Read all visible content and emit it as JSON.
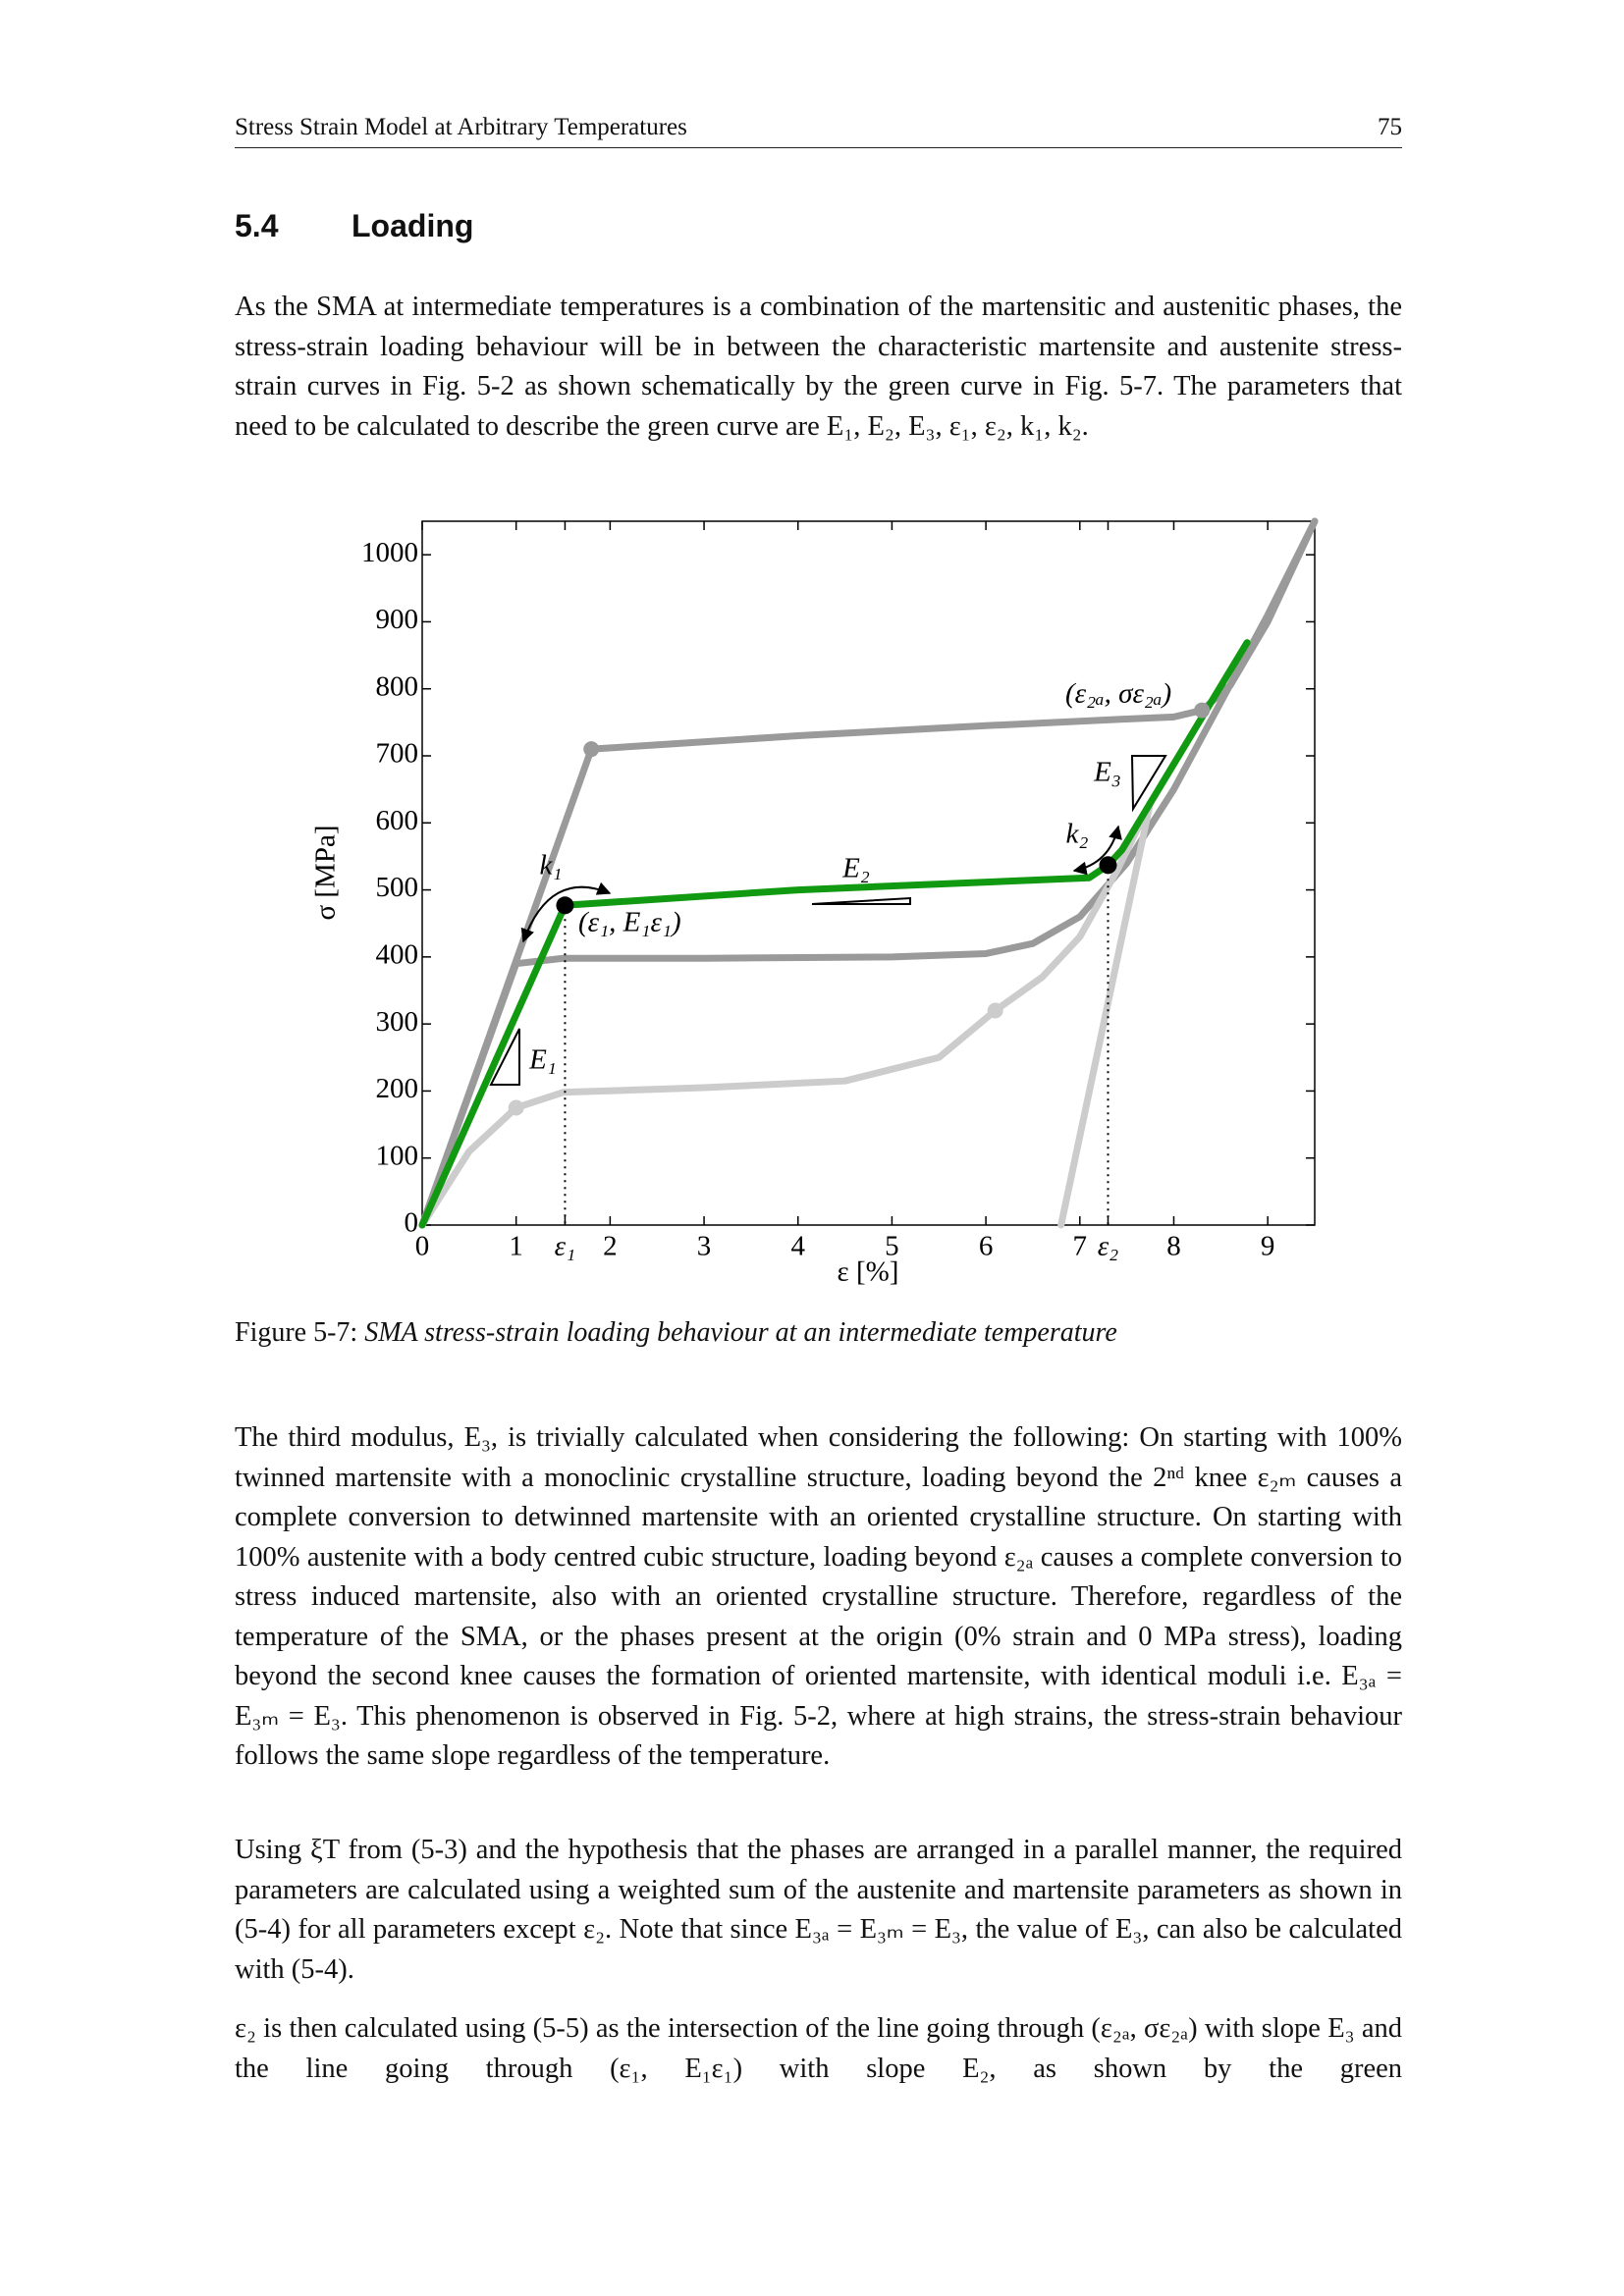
{
  "header": {
    "title": "Stress Strain Model at Arbitrary Temperatures",
    "page": "75"
  },
  "section": {
    "number": "5.4",
    "title": "Loading"
  },
  "paragraphs": [
    "As the SMA at intermediate temperatures is a combination of the martensitic and austenitic phases, the stress-strain loading behaviour will be in between the characteristic martensite and austenite stress-strain curves in Fig. 5-2 as shown schematically by the green curve in Fig. 5-7. The parameters that need to be calculated to describe the green curve are E₁, E₂, E₃, ε₁, ε₂, k₁, k₂.",
    "The third modulus, E₃, is trivially calculated when considering the following: On starting with 100% twinned martensite with a monoclinic crystalline structure, loading beyond the 2ⁿᵈ knee ε₂ₘ causes a complete conversion to detwinned martensite with an oriented crystalline structure. On starting with 100% austenite with a body centred cubic structure, loading beyond ε₂ₐ causes a complete conversion to stress induced martensite, also with an oriented crystalline structure. Therefore, regardless of the temperature of the SMA, or the phases present at the origin (0% strain and 0 MPa stress), loading beyond the second knee causes the formation of oriented martensite, with identical moduli i.e. E₃ₐ = E₃ₘ = E₃. This phenomenon is observed in Fig. 5-2, where at high strains, the stress-strain behaviour follows the same slope regardless of the temperature.",
    "Using ξT from (5-3) and the hypothesis that the phases are arranged in a parallel manner, the required parameters are calculated using a weighted sum of the austenite and martensite parameters as shown in (5-4) for all parameters except ε₂. Note that since E₃ₐ = E₃ₘ = E₃, the value of E₃, can also be calculated with (5-4).",
    "ε₂ is then calculated using (5-5) as the intersection of the line going through (ε₂ₐ, σε₂ₐ) with slope E₃ and the line going through (ε₁, E₁ε₁) with slope E₂, as shown by the green"
  ],
  "caption": {
    "label": "Figure 5-7:",
    "text": "SMA stress-strain loading behaviour at an intermediate temperature"
  },
  "chart_data": {
    "type": "line",
    "x_label": "ε [%]",
    "y_label": "σ [MPa]",
    "xlim": [
      0,
      9.5
    ],
    "ylim": [
      0,
      1050
    ],
    "xticks": [
      0,
      1,
      {
        "value": 1.52,
        "label": "ε₁"
      },
      2,
      3,
      4,
      5,
      6,
      7,
      {
        "value": 7.3,
        "label": "ε₂"
      },
      8,
      9
    ],
    "yticks": [
      0,
      100,
      200,
      300,
      400,
      500,
      600,
      700,
      800,
      900,
      1000
    ],
    "annotations": [
      "k₁",
      "E₂",
      "k₂",
      "E₃",
      "E₁",
      "(ε₁, E₁ε₁)",
      "(ε₂ₐ, σε₂ₐ)"
    ],
    "series": [
      {
        "type": "line",
        "color": "#9a9a9a",
        "x": [
          0,
          1.8,
          4,
          6,
          7.5,
          8.0,
          8.3,
          8.6,
          9.0,
          9.5
        ],
        "values": [
          0,
          710,
          730,
          745,
          755,
          758,
          768,
          805,
          900,
          1050
        ]
      },
      {
        "type": "line",
        "color": "#9a9a9a",
        "x": [
          0,
          1,
          1.5,
          3,
          5,
          6,
          6.5,
          7,
          7.5,
          8,
          8.5,
          9,
          9.5
        ],
        "values": [
          0,
          390,
          398,
          398,
          400,
          405,
          420,
          460,
          540,
          650,
          780,
          910,
          1050
        ]
      },
      {
        "type": "line",
        "color": "#cccccc",
        "x": [
          0,
          0.5,
          1,
          1.5,
          3,
          4.5,
          5.5,
          6.1,
          6.6,
          7,
          7.4,
          7.75
        ],
        "values": [
          0,
          110,
          175,
          198,
          205,
          215,
          250,
          320,
          370,
          430,
          530,
          630
        ]
      },
      {
        "type": "line",
        "color": "#cccccc",
        "x": [
          6.8,
          7.75
        ],
        "values": [
          0,
          630
        ]
      },
      {
        "type": "line",
        "color": "#119911",
        "x": [
          0,
          1.52,
          4,
          7.1,
          7.3,
          7.45,
          8.78
        ],
        "values": [
          0,
          477,
          500,
          518,
          537,
          560,
          869
        ]
      },
      {
        "type": "scatter",
        "color": "#9a9a9a",
        "x": [
          1.8,
          8.3
        ],
        "values": [
          710,
          768
        ]
      },
      {
        "type": "scatter",
        "color": "#cccccc",
        "x": [
          1,
          6.1
        ],
        "values": [
          175,
          320
        ]
      },
      {
        "type": "scatter",
        "color": "#000000",
        "drop_lines": true,
        "x": [
          1.52,
          7.3
        ],
        "values": [
          477,
          537
        ]
      }
    ]
  }
}
